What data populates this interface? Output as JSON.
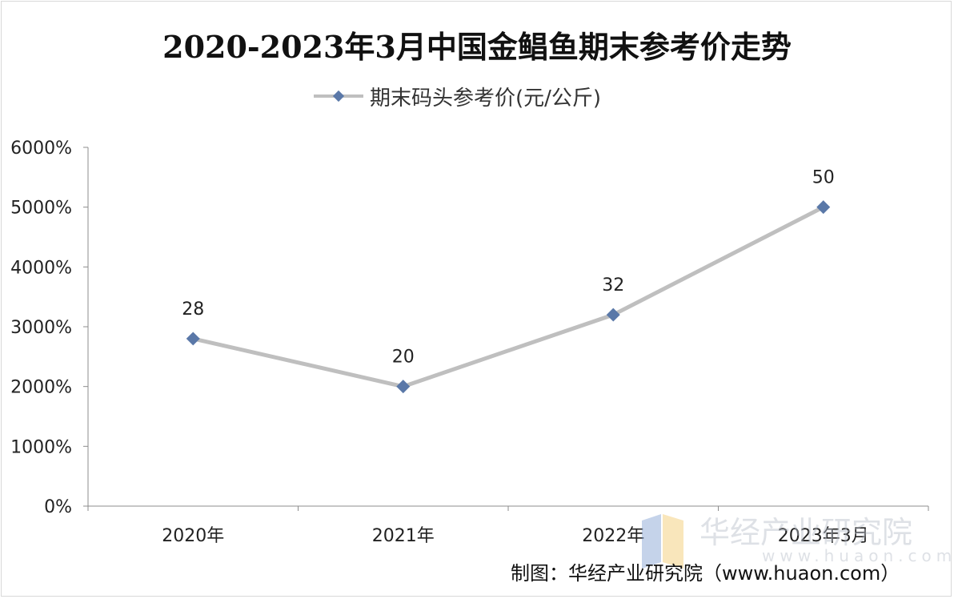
{
  "chart_data": {
    "type": "line",
    "title": "2020-2023年3月中国金鲳鱼期末参考价走势",
    "xlabel": "",
    "ylabel": "",
    "categories": [
      "2020年",
      "2021年",
      "2022年",
      "2023年3月"
    ],
    "series": [
      {
        "name": "期末码头参考价(元/公斤)",
        "values": [
          28,
          20,
          32,
          50
        ],
        "data_labels": [
          "28",
          "20",
          "32",
          "50"
        ],
        "color": "#bfbfbf",
        "marker_color": "#5a78a8"
      }
    ],
    "y_ticks": [
      "0%",
      "1000%",
      "2000%",
      "3000%",
      "4000%",
      "5000%",
      "6000%"
    ],
    "ylim": [
      0,
      60
    ],
    "grid": false,
    "legend_position": "top"
  },
  "watermark": {
    "text": "华经产业研究院",
    "url": "www.huaon.com"
  },
  "source": "制图：华经产业研究院（www.huaon.com）"
}
